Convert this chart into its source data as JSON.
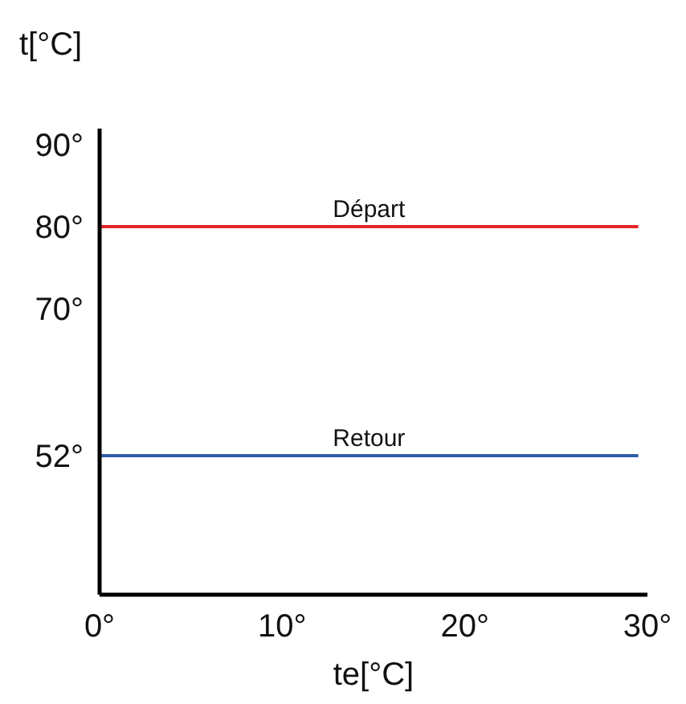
{
  "chart_data": {
    "type": "line",
    "xlabel": "te[°C]",
    "ylabel": "t[°C]",
    "x": [
      0,
      29.5
    ],
    "series": [
      {
        "name": "Départ",
        "color": "#e32528",
        "values": [
          80,
          80
        ]
      },
      {
        "name": "Retour",
        "color": "#2f5ea8",
        "values": [
          52,
          52
        ]
      }
    ],
    "xlim": [
      0,
      30
    ],
    "ylim": [
      35,
      92
    ],
    "xticks": [
      {
        "value": 0,
        "label": "0°"
      },
      {
        "value": 10,
        "label": "10°"
      },
      {
        "value": 20,
        "label": "20°"
      },
      {
        "value": 30,
        "label": "30°"
      }
    ],
    "yticks": [
      {
        "value": 90,
        "label": "90°"
      },
      {
        "value": 80,
        "label": "80°"
      },
      {
        "value": 70,
        "label": "70°"
      },
      {
        "value": 52,
        "label": "52°"
      }
    ],
    "grid": false,
    "marker": "none",
    "line_style": "solid"
  }
}
